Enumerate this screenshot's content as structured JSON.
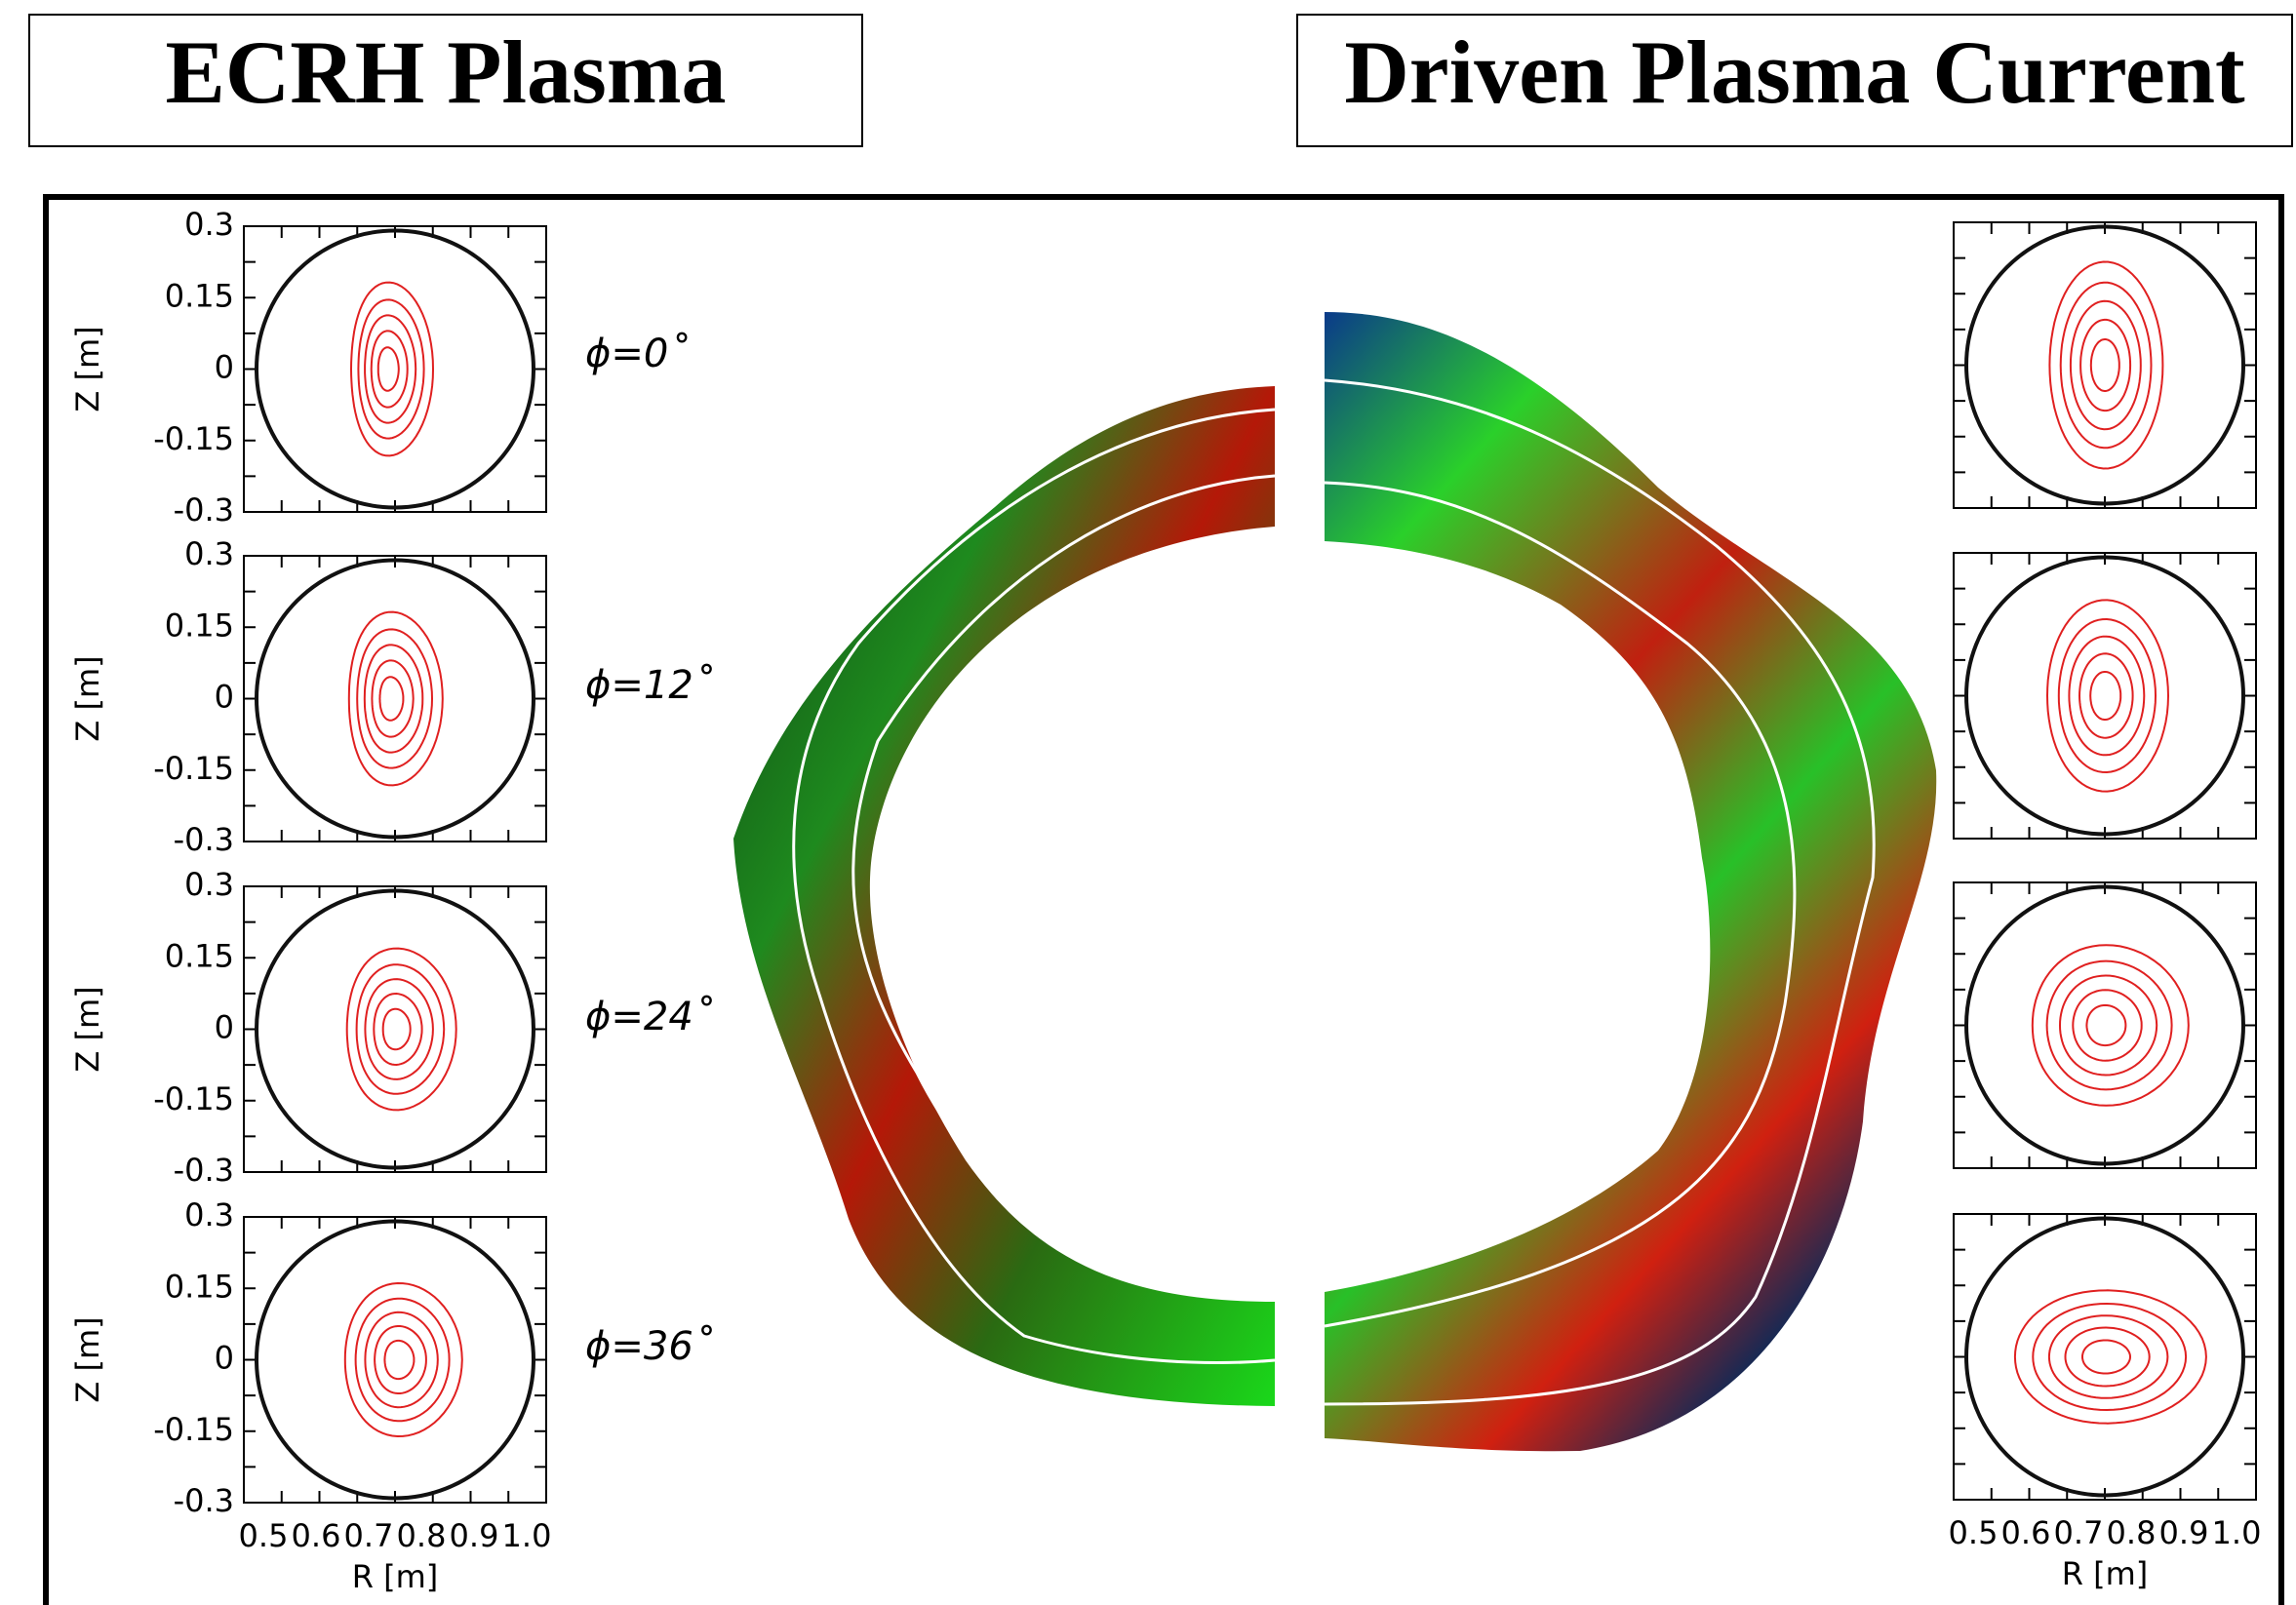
{
  "headers": {
    "left": "ECRH Plasma",
    "right": "Driven Plasma Current"
  },
  "left_panels": {
    "y_label": "Z [m]",
    "y_ticks": [
      "0.3",
      "0.15",
      "0",
      "-0.15",
      "-0.3"
    ],
    "x_label": "R [m]",
    "x_ticks": [
      "0.5",
      "0.6",
      "0.7",
      "0.8",
      "0.9",
      "1.0"
    ],
    "angles": [
      "ϕ=0˚",
      "ϕ=12˚",
      "ϕ=24˚",
      "ϕ=36˚"
    ]
  },
  "right_panels": {
    "x_label": "R [m]",
    "x_ticks": [
      "0.5",
      "0.6",
      "0.7",
      "0.8",
      "0.9",
      "1.0"
    ]
  }
}
